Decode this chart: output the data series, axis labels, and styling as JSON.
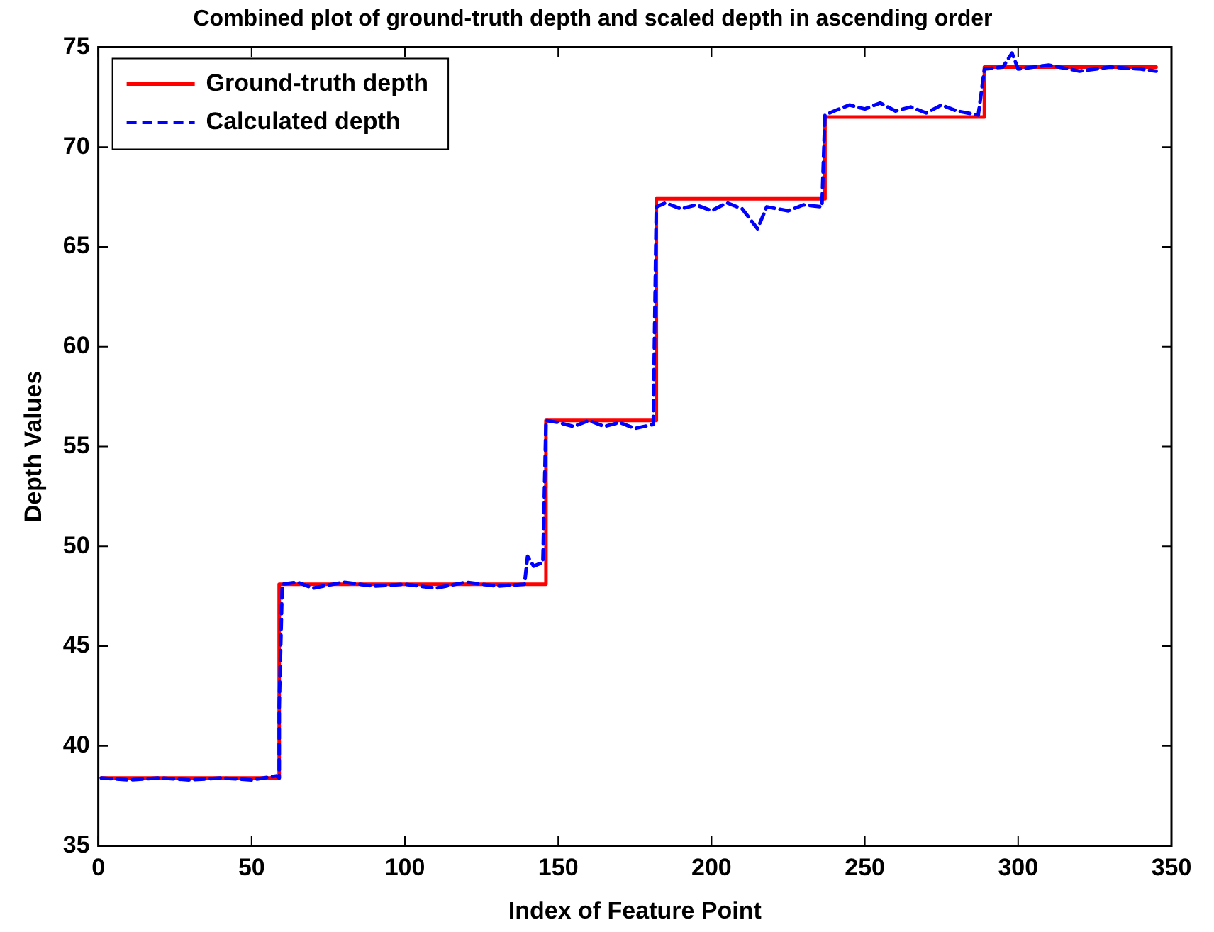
{
  "chart_data": {
    "type": "line",
    "title": "Combined plot of ground-truth depth and scaled depth in ascending order",
    "xlabel": "Index of Feature Point",
    "ylabel": "Depth Values",
    "xlim": [
      0,
      350
    ],
    "xticks": [
      0,
      50,
      100,
      150,
      200,
      250,
      300,
      350
    ],
    "ylim": [
      35,
      75
    ],
    "yticks": [
      35,
      40,
      45,
      50,
      55,
      60,
      65,
      70,
      75
    ],
    "grid": false,
    "legend": "top left",
    "marker": "none",
    "series": [
      {
        "name": "Ground-truth depth",
        "color": "#ff0000",
        "line_style": "solid",
        "x": [
          1,
          59,
          59,
          146,
          146,
          182,
          182,
          237,
          237,
          289,
          289,
          345
        ],
        "values": [
          38.4,
          38.4,
          48.1,
          48.1,
          56.3,
          56.3,
          67.4,
          67.4,
          71.5,
          71.5,
          74.0,
          74.0
        ]
      },
      {
        "name": "Calculated depth",
        "color": "#0000ff",
        "line_style": "dashed",
        "x": [
          1,
          10,
          20,
          30,
          40,
          50,
          58,
          59,
          59,
          60,
          65,
          70,
          80,
          90,
          100,
          110,
          120,
          130,
          139,
          140,
          142,
          145,
          146,
          150,
          155,
          160,
          165,
          170,
          175,
          181,
          182,
          185,
          190,
          195,
          200,
          205,
          210,
          215,
          218,
          225,
          230,
          236,
          237,
          240,
          245,
          250,
          255,
          260,
          265,
          270,
          275,
          280,
          287,
          289,
          295,
          298,
          300,
          310,
          320,
          330,
          340,
          345
        ],
        "values": [
          38.4,
          38.3,
          38.4,
          38.3,
          38.4,
          38.3,
          38.5,
          38.4,
          42,
          48.1,
          48.2,
          47.9,
          48.2,
          48.0,
          48.1,
          47.9,
          48.2,
          48.0,
          48.1,
          49.5,
          49.0,
          49.2,
          56.3,
          56.2,
          56.0,
          56.3,
          56.0,
          56.2,
          55.9,
          56.1,
          67.0,
          67.2,
          66.9,
          67.1,
          66.8,
          67.2,
          66.9,
          65.9,
          67.0,
          66.8,
          67.1,
          67.0,
          71.6,
          71.8,
          72.1,
          71.9,
          72.2,
          71.8,
          72.0,
          71.7,
          72.1,
          71.8,
          71.6,
          73.9,
          74.0,
          74.7,
          73.9,
          74.1,
          73.8,
          74.0,
          73.9,
          73.8
        ]
      }
    ]
  }
}
